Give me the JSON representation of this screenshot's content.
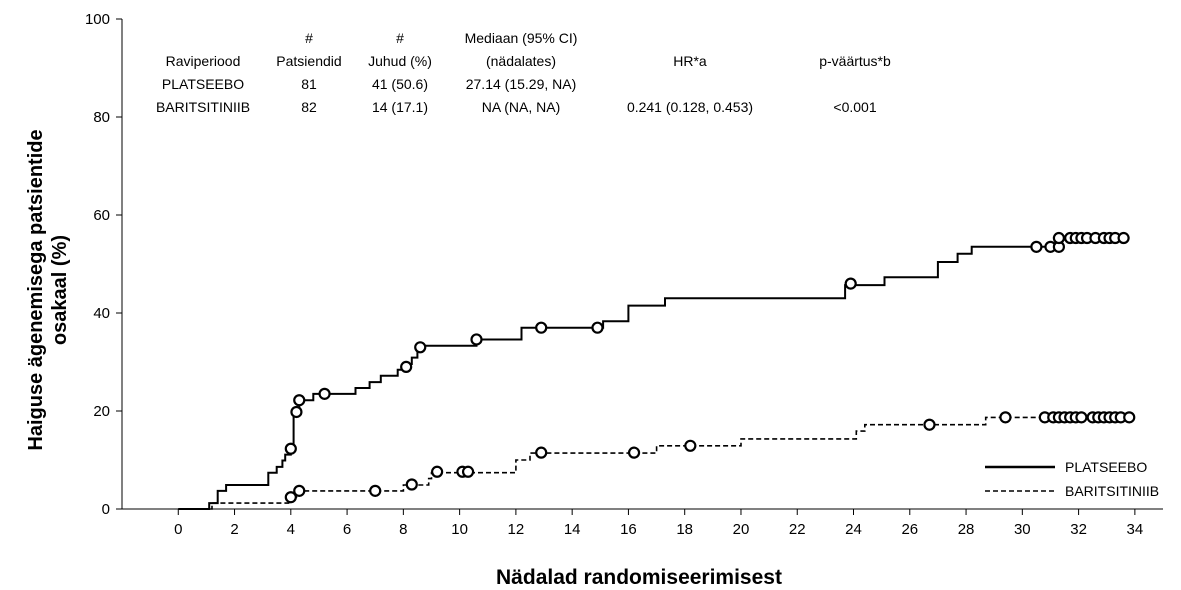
{
  "chart_data": {
    "type": "line",
    "subtype": "kaplan-meier-cumulative-incidence",
    "xlabel": "Nädalad randomiseerimisest",
    "ylabel_line1": "Haiguse ägenemisega patsientide",
    "ylabel_line2": "osakaal (%)",
    "xlim": [
      -2,
      35
    ],
    "ylim": [
      0,
      100
    ],
    "xticks": [
      "0",
      "2",
      "4",
      "6",
      "8",
      "10",
      "12",
      "14",
      "16",
      "18",
      "20",
      "22",
      "24",
      "26",
      "28",
      "30",
      "32",
      "34"
    ],
    "yticks": [
      "0",
      "20",
      "40",
      "60",
      "80",
      "100"
    ],
    "grid": false,
    "legend_placement": "bottom-right",
    "series": [
      {
        "name": "PLATSEEBO",
        "style": "solid",
        "steps": [
          [
            0,
            0
          ],
          [
            1.1,
            0
          ],
          [
            1.1,
            1.2
          ],
          [
            1.4,
            1.2
          ],
          [
            1.4,
            3.7
          ],
          [
            1.7,
            3.7
          ],
          [
            1.7,
            4.9
          ],
          [
            3.2,
            4.9
          ],
          [
            3.2,
            7.4
          ],
          [
            3.5,
            7.4
          ],
          [
            3.5,
            8.6
          ],
          [
            3.7,
            8.6
          ],
          [
            3.7,
            9.9
          ],
          [
            3.8,
            9.9
          ],
          [
            3.8,
            11.1
          ],
          [
            4.0,
            11.1
          ],
          [
            4.0,
            12.3
          ],
          [
            4.1,
            12.3
          ],
          [
            4.1,
            19.8
          ],
          [
            4.3,
            19.8
          ],
          [
            4.3,
            22.2
          ],
          [
            4.8,
            22.2
          ],
          [
            4.8,
            23.5
          ],
          [
            6.3,
            23.5
          ],
          [
            6.3,
            24.7
          ],
          [
            6.8,
            24.7
          ],
          [
            6.8,
            25.9
          ],
          [
            7.2,
            25.9
          ],
          [
            7.2,
            27.2
          ],
          [
            7.8,
            27.2
          ],
          [
            7.8,
            28.4
          ],
          [
            8.0,
            28.4
          ],
          [
            8.0,
            29.6
          ],
          [
            8.3,
            29.6
          ],
          [
            8.3,
            30.9
          ],
          [
            8.5,
            30.9
          ],
          [
            8.5,
            33.3
          ],
          [
            10.6,
            33.3
          ],
          [
            10.6,
            34.6
          ],
          [
            12.2,
            34.6
          ],
          [
            12.2,
            37.0
          ],
          [
            15.1,
            37.0
          ],
          [
            15.1,
            38.3
          ],
          [
            16.0,
            38.3
          ],
          [
            16.0,
            41.5
          ],
          [
            17.3,
            41.5
          ],
          [
            17.3,
            43.0
          ],
          [
            23.7,
            43.0
          ],
          [
            23.7,
            45.7
          ],
          [
            25.1,
            45.7
          ],
          [
            25.1,
            47.3
          ],
          [
            27.0,
            47.3
          ],
          [
            27.0,
            50.4
          ],
          [
            27.7,
            50.4
          ],
          [
            27.7,
            52.1
          ],
          [
            28.2,
            52.1
          ],
          [
            28.2,
            53.5
          ],
          [
            31.2,
            53.5
          ],
          [
            31.2,
            55.3
          ],
          [
            33.6,
            55.3
          ]
        ],
        "censored": [
          [
            4.0,
            12.3
          ],
          [
            4.2,
            19.8
          ],
          [
            4.3,
            22.2
          ],
          [
            5.2,
            23.5
          ],
          [
            8.1,
            29.0
          ],
          [
            8.6,
            33.0
          ],
          [
            10.6,
            34.6
          ],
          [
            12.9,
            37.0
          ],
          [
            14.9,
            37.0
          ],
          [
            23.9,
            46.0
          ],
          [
            30.5,
            53.5
          ],
          [
            31.0,
            53.5
          ],
          [
            31.3,
            53.5
          ],
          [
            31.3,
            55.3
          ],
          [
            31.7,
            55.3
          ],
          [
            31.9,
            55.3
          ],
          [
            32.1,
            55.3
          ],
          [
            32.3,
            55.3
          ],
          [
            32.6,
            55.3
          ],
          [
            32.9,
            55.3
          ],
          [
            33.1,
            55.3
          ],
          [
            33.3,
            55.3
          ],
          [
            33.6,
            55.3
          ]
        ]
      },
      {
        "name": "BARITSITINIIB",
        "style": "dashed",
        "steps": [
          [
            0,
            0
          ],
          [
            1.2,
            0
          ],
          [
            1.2,
            1.2
          ],
          [
            4.0,
            1.2
          ],
          [
            4.0,
            2.4
          ],
          [
            4.2,
            2.4
          ],
          [
            4.2,
            3.7
          ],
          [
            8.0,
            3.7
          ],
          [
            8.0,
            4.9
          ],
          [
            8.9,
            4.9
          ],
          [
            8.9,
            6.2
          ],
          [
            9.0,
            6.2
          ],
          [
            9.0,
            7.4
          ],
          [
            12.0,
            7.4
          ],
          [
            12.0,
            10.0
          ],
          [
            12.5,
            10.0
          ],
          [
            12.5,
            11.4
          ],
          [
            17.0,
            11.4
          ],
          [
            17.0,
            12.9
          ],
          [
            20.0,
            12.9
          ],
          [
            20.0,
            14.3
          ],
          [
            24.1,
            14.3
          ],
          [
            24.1,
            15.9
          ],
          [
            24.4,
            15.9
          ],
          [
            24.4,
            17.2
          ],
          [
            28.7,
            17.2
          ],
          [
            28.7,
            18.7
          ],
          [
            33.8,
            18.7
          ]
        ],
        "censored": [
          [
            4.0,
            2.4
          ],
          [
            4.3,
            3.7
          ],
          [
            7.0,
            3.7
          ],
          [
            8.3,
            5.0
          ],
          [
            9.2,
            7.6
          ],
          [
            10.1,
            7.6
          ],
          [
            10.3,
            7.6
          ],
          [
            12.9,
            11.5
          ],
          [
            16.2,
            11.5
          ],
          [
            18.2,
            12.9
          ],
          [
            26.7,
            17.2
          ],
          [
            29.4,
            18.7
          ],
          [
            30.8,
            18.7
          ],
          [
            31.1,
            18.7
          ],
          [
            31.3,
            18.7
          ],
          [
            31.5,
            18.7
          ],
          [
            31.7,
            18.7
          ],
          [
            31.9,
            18.7
          ],
          [
            32.1,
            18.7
          ],
          [
            32.5,
            18.7
          ],
          [
            32.7,
            18.7
          ],
          [
            32.9,
            18.7
          ],
          [
            33.1,
            18.7
          ],
          [
            33.3,
            18.7
          ],
          [
            33.5,
            18.7
          ],
          [
            33.8,
            18.7
          ]
        ]
      }
    ],
    "legend": [
      {
        "name": "PLATSEEBO",
        "style": "solid"
      },
      {
        "name": "BARITSITINIIB",
        "style": "dashed"
      }
    ],
    "annotation_table": {
      "header_top": [
        "",
        "#",
        "#",
        "Mediaan (95% CI)",
        "",
        ""
      ],
      "header": [
        "Raviperiood",
        "Patsiendid",
        "Juhud (%)",
        "(nädalates)",
        "HR*a",
        "p-väärtus*b"
      ],
      "rows": [
        [
          "PLATSEEBO",
          "81",
          "41 (50.6)",
          "27.14 (15.29, NA)",
          "",
          ""
        ],
        [
          "BARITSITINIIB",
          "82",
          "14 (17.1)",
          "NA (NA, NA)",
          "0.241 (0.128, 0.453)",
          "<0.001"
        ]
      ]
    }
  }
}
